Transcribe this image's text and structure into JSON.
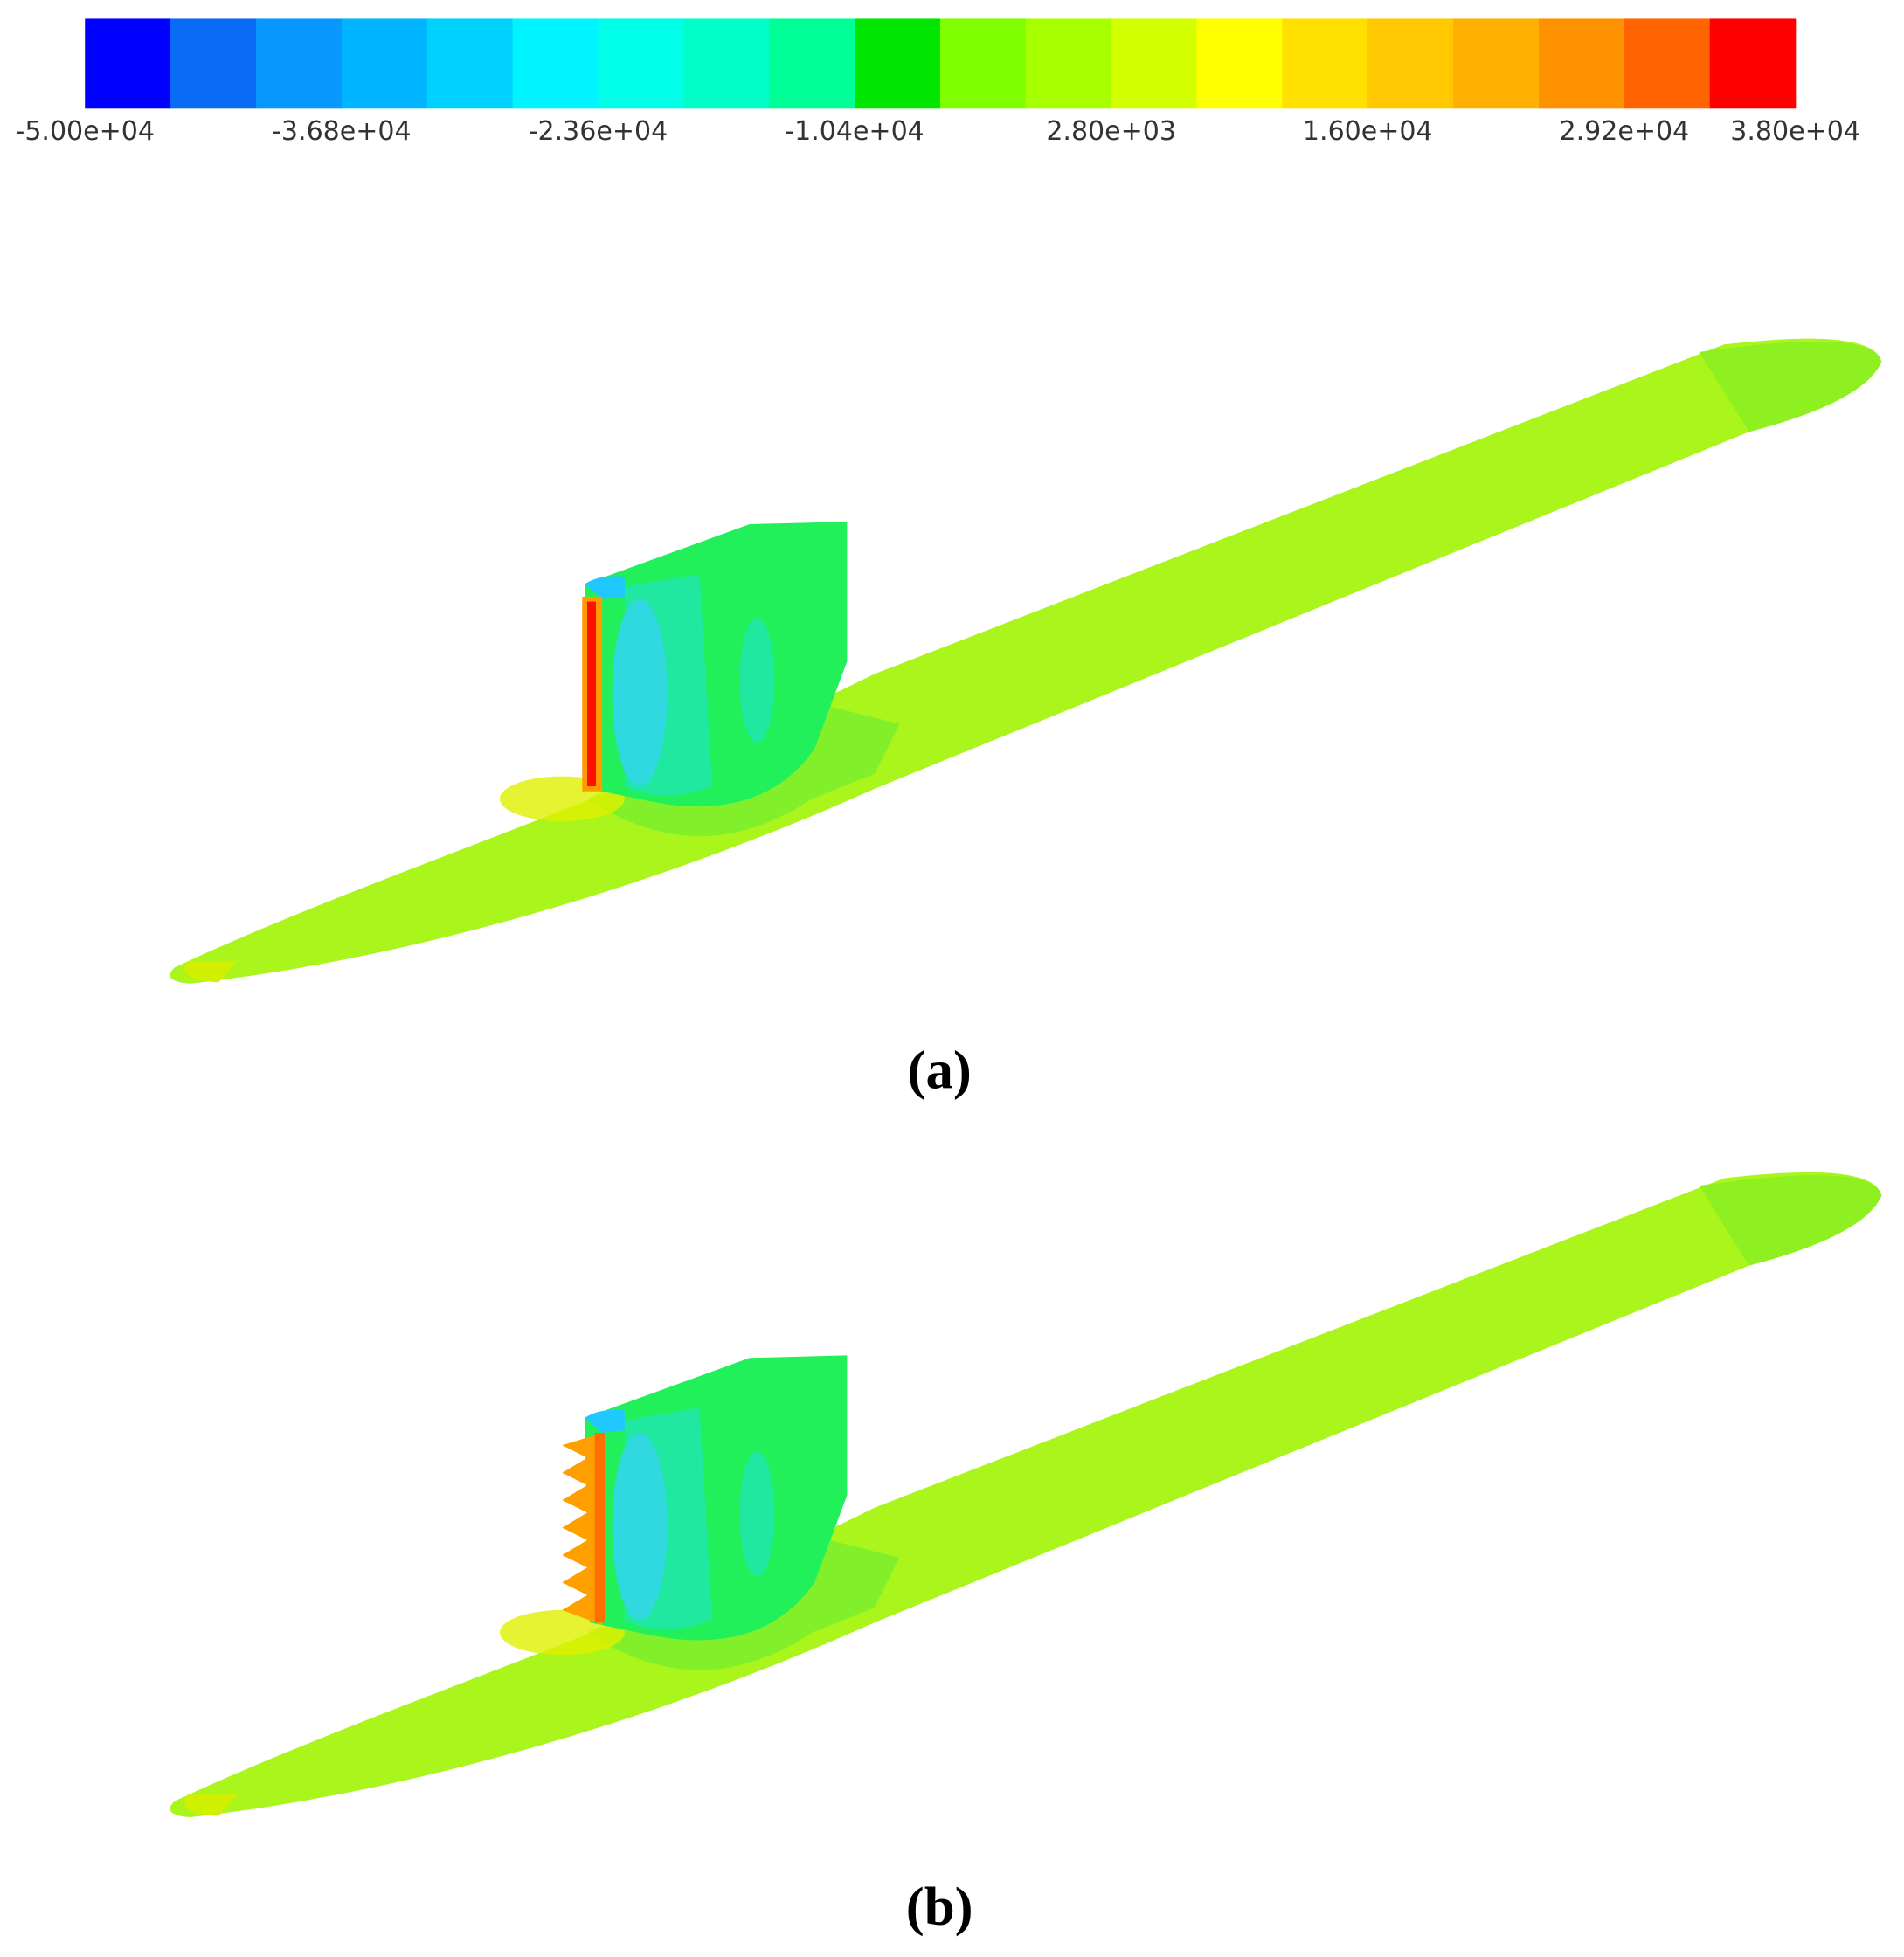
{
  "colorbar": {
    "lim": [
      -50000,
      38000
    ],
    "ticks": [
      {
        "value": -50000,
        "label": "-5.00e+04"
      },
      {
        "value": -36800,
        "label": "-3.68e+04"
      },
      {
        "value": -23600,
        "label": "-2.36e+04"
      },
      {
        "value": -10400,
        "label": "-1.04e+04"
      },
      {
        "value": 2800,
        "label": "2.80e+03"
      },
      {
        "value": 16000,
        "label": "1.60e+04"
      },
      {
        "value": 29200,
        "label": "2.92e+04"
      },
      {
        "value": 38000,
        "label": "3.80e+04"
      }
    ],
    "colors": [
      "#0000ff",
      "#0a6cf5",
      "#0897ff",
      "#00b4ff",
      "#00d2ff",
      "#00f4ff",
      "#00ffe6",
      "#00ffc8",
      "#00ff96",
      "#00e600",
      "#80ff00",
      "#a8ff00",
      "#d4ff00",
      "#ffff00",
      "#ffe000",
      "#ffc800",
      "#ffb000",
      "#ff9200",
      "#ff6400",
      "#ff0000"
    ]
  },
  "panels": [
    {
      "label": "(a)"
    },
    {
      "label": "(b)"
    }
  ]
}
